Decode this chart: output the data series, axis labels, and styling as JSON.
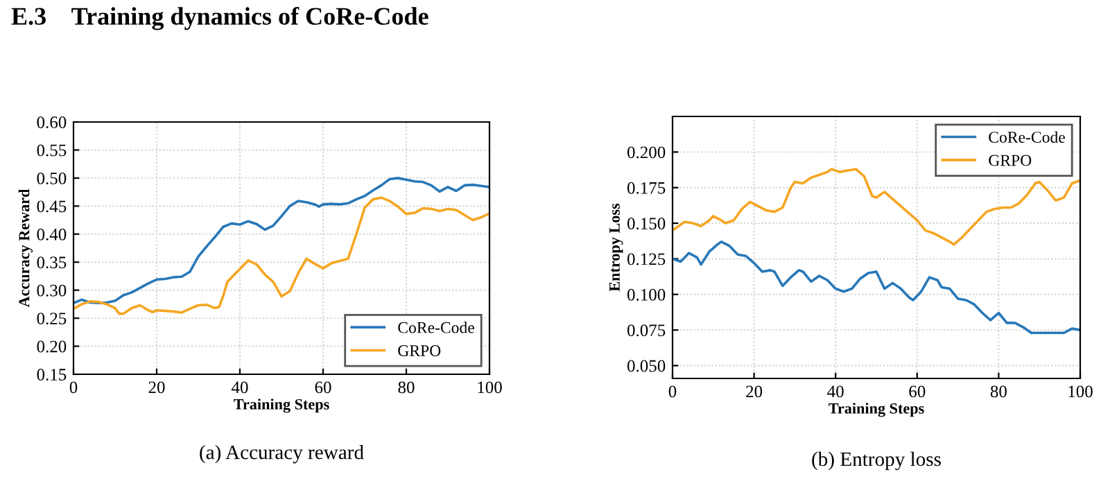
{
  "chart_data": [
    {
      "type": "line",
      "title": "E.3    Training dynamics of CoRe-Code",
      "xlabel": "Training Steps",
      "ylabel": "Accuracy Reward",
      "annotations": [
        "(a) Accuracy reward"
      ],
      "xlim": [
        0,
        100
      ],
      "ylim": [
        0.15,
        0.6
      ],
      "xticks": [
        0,
        20,
        40,
        60,
        80,
        100
      ],
      "yticks": [
        {
          "value": 0.15,
          "label": "0.15"
        },
        {
          "value": 0.2,
          "label": "0.20"
        },
        {
          "value": 0.25,
          "label": "0.25"
        },
        {
          "value": 0.3,
          "label": "0.30"
        },
        {
          "value": 0.35,
          "label": "0.35"
        },
        {
          "value": 0.4,
          "label": "0.40"
        },
        {
          "value": 0.45,
          "label": "0.45"
        },
        {
          "value": 0.5,
          "label": "0.50"
        },
        {
          "value": 0.55,
          "label": "0.55"
        },
        {
          "value": 0.6,
          "label": "0.60"
        }
      ],
      "grid": true,
      "legend": "bottom right",
      "line_style": "solid",
      "series": [
        {
          "name": "CoRe-Code",
          "color": "#2878b8",
          "x": [
            0,
            2,
            4,
            6,
            8,
            10,
            12,
            14,
            16,
            18,
            20,
            22,
            24,
            26,
            28,
            30,
            32,
            34,
            36,
            38,
            40,
            42,
            44,
            46,
            48,
            50,
            52,
            54,
            56,
            58,
            59,
            60,
            62,
            64,
            66,
            68,
            70,
            72,
            74,
            76,
            78,
            80,
            82,
            84,
            86,
            88,
            90,
            92,
            94,
            96,
            98,
            100
          ],
          "values": [
            0.277,
            0.283,
            0.278,
            0.277,
            0.278,
            0.281,
            0.291,
            0.296,
            0.304,
            0.312,
            0.319,
            0.32,
            0.323,
            0.324,
            0.333,
            0.36,
            0.378,
            0.395,
            0.413,
            0.419,
            0.417,
            0.423,
            0.418,
            0.408,
            0.415,
            0.432,
            0.45,
            0.459,
            0.457,
            0.453,
            0.449,
            0.453,
            0.454,
            0.453,
            0.455,
            0.462,
            0.468,
            0.478,
            0.487,
            0.498,
            0.5,
            0.497,
            0.494,
            0.493,
            0.487,
            0.476,
            0.484,
            0.477,
            0.487,
            0.488,
            0.486,
            0.484
          ]
        },
        {
          "name": "GRPO",
          "color": "#f5a623",
          "x": [
            0,
            2,
            4,
            6,
            8,
            10,
            11,
            12,
            14,
            16,
            18,
            19,
            20,
            24,
            26,
            28,
            30,
            32,
            34,
            35,
            36,
            37,
            40,
            42,
            44,
            46,
            48,
            50,
            52,
            54,
            56,
            58,
            60,
            62,
            64,
            66,
            68,
            70,
            72,
            74,
            76,
            78,
            80,
            82,
            84,
            86,
            88,
            90,
            92,
            94,
            96,
            98,
            100
          ],
          "values": [
            0.267,
            0.275,
            0.28,
            0.279,
            0.275,
            0.268,
            0.258,
            0.258,
            0.268,
            0.273,
            0.264,
            0.261,
            0.264,
            0.262,
            0.26,
            0.267,
            0.273,
            0.274,
            0.268,
            0.27,
            0.29,
            0.315,
            0.338,
            0.353,
            0.346,
            0.328,
            0.315,
            0.289,
            0.298,
            0.33,
            0.356,
            0.347,
            0.339,
            0.348,
            0.352,
            0.356,
            0.4,
            0.447,
            0.462,
            0.465,
            0.459,
            0.449,
            0.436,
            0.438,
            0.446,
            0.445,
            0.441,
            0.445,
            0.443,
            0.434,
            0.425,
            0.43,
            0.437
          ]
        }
      ]
    },
    {
      "type": "line",
      "xlabel": "Training Steps",
      "ylabel": "Entropy Loss",
      "annotations": [
        "(b) Entropy loss"
      ],
      "xlim": [
        0,
        100
      ],
      "ylim": [
        0.041,
        0.225
      ],
      "xticks": [
        0,
        20,
        40,
        60,
        80,
        100
      ],
      "yticks": [
        {
          "value": 0.05,
          "label": "0.050"
        },
        {
          "value": 0.075,
          "label": "0.075"
        },
        {
          "value": 0.1,
          "label": "0.100"
        },
        {
          "value": 0.125,
          "label": "0.125"
        },
        {
          "value": 0.15,
          "label": "0.150"
        },
        {
          "value": 0.175,
          "label": "0.175"
        },
        {
          "value": 0.2,
          "label": "0.200"
        }
      ],
      "grid": true,
      "legend": "top right",
      "line_style": "solid",
      "series": [
        {
          "name": "CoRe-Code",
          "color": "#2878b8",
          "x": [
            0,
            2,
            4,
            6,
            7,
            9,
            11,
            12,
            14,
            16,
            18,
            20,
            22,
            24,
            25,
            27,
            29,
            31,
            32,
            34,
            36,
            38,
            40,
            42,
            44,
            46,
            48,
            50,
            52,
            54,
            56,
            58,
            59,
            61,
            63,
            65,
            66,
            68,
            70,
            72,
            74,
            76,
            78,
            80,
            82,
            84,
            86,
            88,
            92,
            96,
            98,
            100
          ],
          "values": [
            0.125,
            0.123,
            0.129,
            0.126,
            0.121,
            0.13,
            0.135,
            0.137,
            0.134,
            0.128,
            0.127,
            0.122,
            0.116,
            0.117,
            0.116,
            0.106,
            0.112,
            0.117,
            0.116,
            0.109,
            0.113,
            0.11,
            0.104,
            0.102,
            0.104,
            0.111,
            0.115,
            0.116,
            0.104,
            0.108,
            0.104,
            0.098,
            0.096,
            0.102,
            0.112,
            0.11,
            0.105,
            0.104,
            0.097,
            0.096,
            0.093,
            0.087,
            0.082,
            0.087,
            0.08,
            0.08,
            0.077,
            0.073,
            0.073,
            0.073,
            0.076,
            0.075
          ]
        },
        {
          "name": "GRPO",
          "color": "#f5a623",
          "x": [
            0,
            2,
            3,
            5,
            7,
            9,
            10,
            12,
            13,
            15,
            17,
            19,
            21,
            23,
            25,
            27,
            29,
            30,
            32,
            34,
            36,
            38,
            39,
            41,
            43,
            45,
            47,
            49,
            50,
            52,
            54,
            56,
            58,
            60,
            62,
            64,
            66,
            68,
            69,
            71,
            73,
            75,
            77,
            79,
            81,
            83,
            85,
            87,
            89,
            90,
            92,
            94,
            96,
            98,
            100
          ],
          "values": [
            0.145,
            0.149,
            0.151,
            0.15,
            0.148,
            0.152,
            0.155,
            0.152,
            0.15,
            0.152,
            0.16,
            0.165,
            0.162,
            0.159,
            0.158,
            0.161,
            0.175,
            0.179,
            0.178,
            0.182,
            0.184,
            0.186,
            0.188,
            0.186,
            0.187,
            0.188,
            0.183,
            0.169,
            0.168,
            0.172,
            0.167,
            0.162,
            0.157,
            0.152,
            0.145,
            0.143,
            0.14,
            0.137,
            0.135,
            0.14,
            0.146,
            0.152,
            0.158,
            0.16,
            0.161,
            0.161,
            0.164,
            0.17,
            0.178,
            0.179,
            0.173,
            0.166,
            0.168,
            0.178,
            0.18
          ]
        }
      ]
    }
  ]
}
